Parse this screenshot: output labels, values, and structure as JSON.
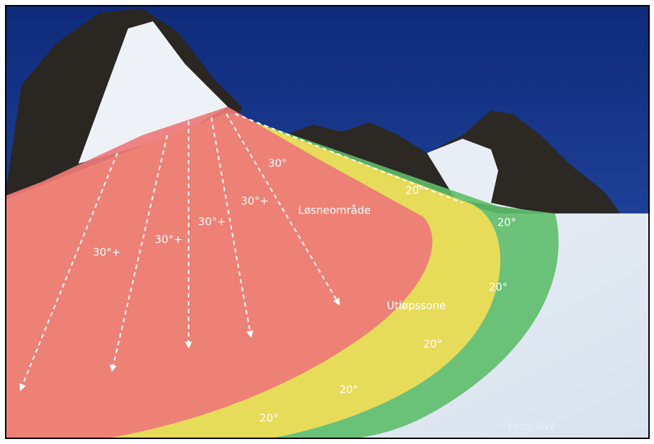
{
  "slope_labels": [
    "30°+",
    "30°+",
    "30°+",
    "30°+",
    "30°"
  ],
  "runout_labels": [
    "20°",
    "20°",
    "20°",
    "20°",
    "20°",
    "20°"
  ],
  "zone_names": [
    "Løsneområde",
    "Utløpssone"
  ],
  "credit": "Foto: NVE"
}
